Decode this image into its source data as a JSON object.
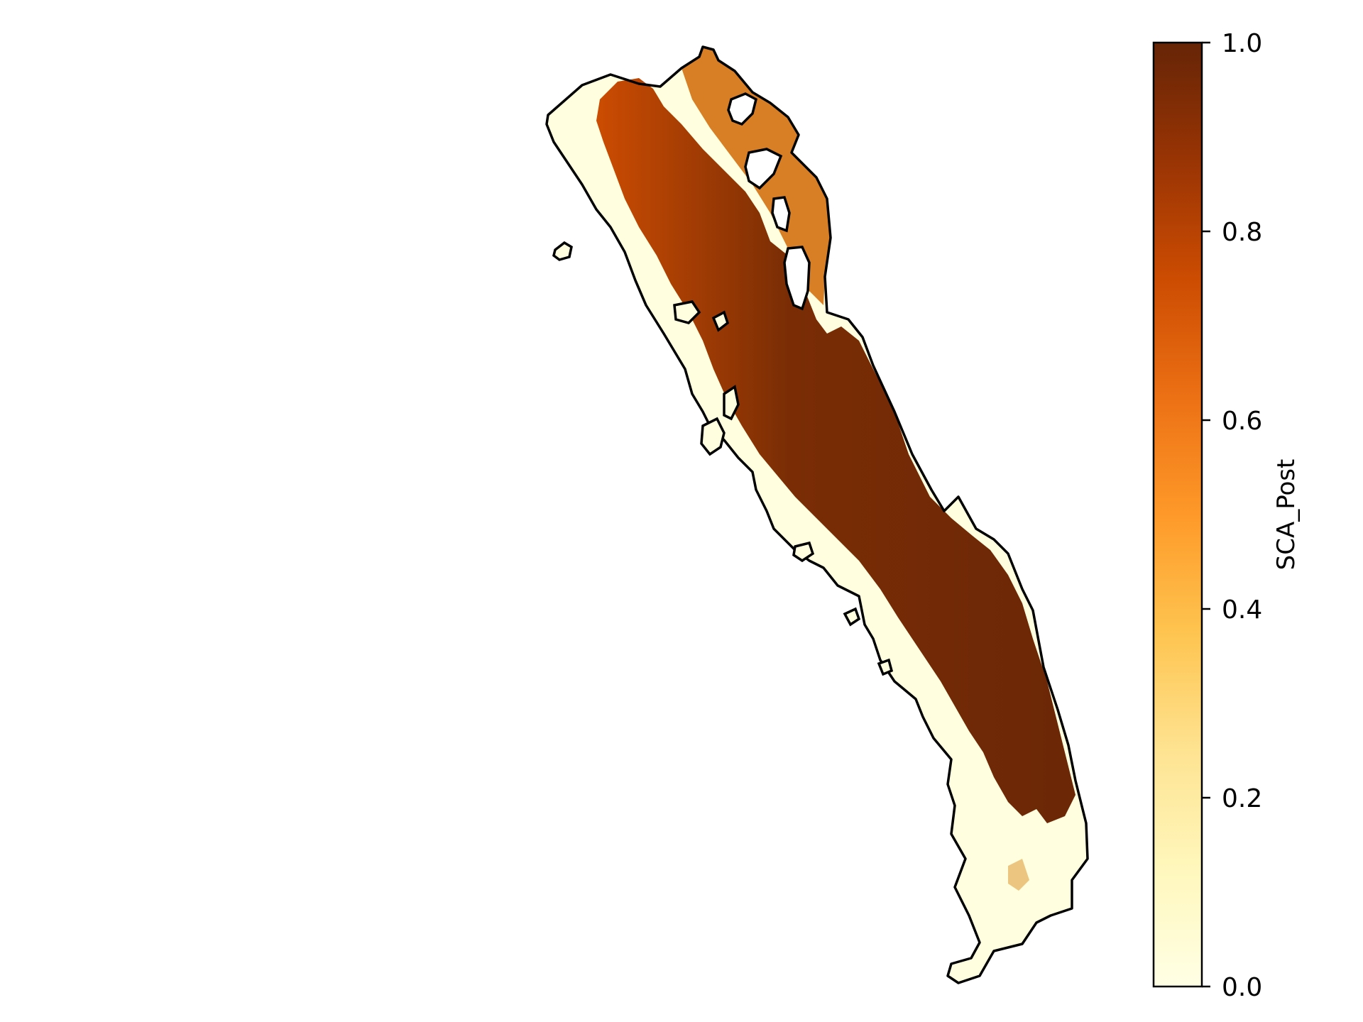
{
  "map": {
    "outline_color": "#000000",
    "background": "#ffffff"
  },
  "colorbar": {
    "label": "SCA_Post",
    "colormap": "YlOrBr",
    "range": [
      0.0,
      1.0
    ],
    "tick_labels": [
      "0.0",
      "0.2",
      "0.4",
      "0.6",
      "0.8",
      "1.0"
    ],
    "tick_values": [
      0.0,
      0.2,
      0.4,
      0.6,
      0.8,
      1.0
    ],
    "colors": [
      "#ffffe5",
      "#fff7bc",
      "#fee391",
      "#fec44f",
      "#fe9929",
      "#ec7014",
      "#cc4c02",
      "#993404",
      "#662506"
    ]
  }
}
